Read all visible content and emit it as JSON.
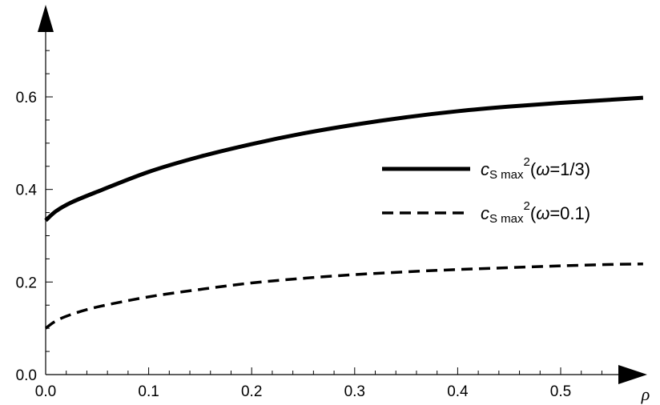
{
  "chart_data": {
    "type": "line",
    "title": "",
    "xlabel": "ρ",
    "ylabel": "",
    "xlim": [
      0,
      0.58
    ],
    "ylim": [
      0,
      0.72
    ],
    "x_ticks": [
      "0.0",
      "0.1",
      "0.2",
      "0.3",
      "0.4",
      "0.5"
    ],
    "y_ticks": [
      "0.0",
      "0.2",
      "0.4",
      "0.6"
    ],
    "grid": false,
    "legend_position": "right",
    "x": [
      0.0,
      0.01,
      0.025,
      0.05,
      0.1,
      0.15,
      0.2,
      0.25,
      0.3,
      0.35,
      0.4,
      0.45,
      0.5,
      0.55,
      0.58
    ],
    "series": [
      {
        "name": "c_S max^2(ω=1/3)",
        "legend": {
          "c": "c",
          "sub": "S max",
          "sup": "2",
          "arg": "(",
          "omega": "ω",
          "rest": "=1/3)"
        },
        "style": "solid",
        "color": "#000000",
        "values": [
          0.333,
          0.353,
          0.372,
          0.395,
          0.438,
          0.471,
          0.498,
          0.521,
          0.54,
          0.556,
          0.569,
          0.579,
          0.587,
          0.594,
          0.598
        ]
      },
      {
        "name": "c_S max^2(ω=0.1)",
        "legend": {
          "c": "c",
          "sub": "S max",
          "sup": "2",
          "arg": "(",
          "omega": "ω",
          "rest": "=0.1)"
        },
        "style": "dashed",
        "color": "#000000",
        "values": [
          0.1,
          0.116,
          0.13,
          0.146,
          0.168,
          0.184,
          0.198,
          0.208,
          0.216,
          0.222,
          0.227,
          0.231,
          0.235,
          0.238,
          0.239
        ]
      }
    ]
  }
}
